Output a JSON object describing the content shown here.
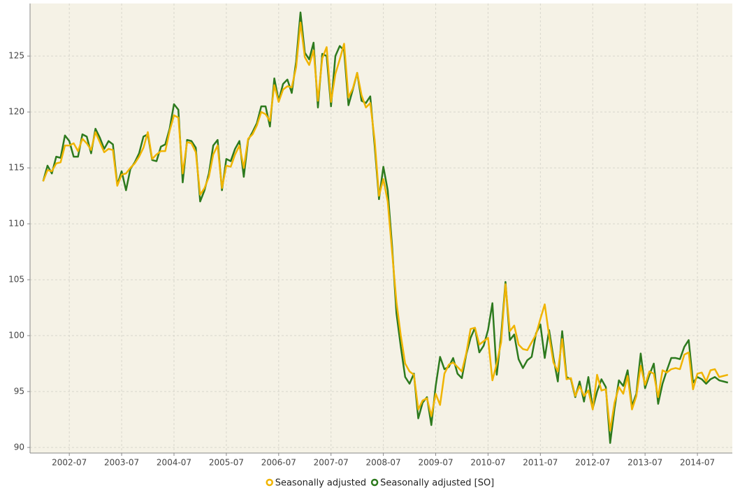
{
  "chart_data": {
    "type": "line",
    "x": [
      "2002-01",
      "2002-02",
      "2002-03",
      "2002-04",
      "2002-05",
      "2002-06",
      "2002-07",
      "2002-08",
      "2002-09",
      "2002-10",
      "2002-11",
      "2002-12",
      "2003-01",
      "2003-02",
      "2003-03",
      "2003-04",
      "2003-05",
      "2003-06",
      "2003-07",
      "2003-08",
      "2003-09",
      "2003-10",
      "2003-11",
      "2003-12",
      "2004-01",
      "2004-02",
      "2004-03",
      "2004-04",
      "2004-05",
      "2004-06",
      "2004-07",
      "2004-08",
      "2004-09",
      "2004-10",
      "2004-11",
      "2004-12",
      "2005-01",
      "2005-02",
      "2005-03",
      "2005-04",
      "2005-05",
      "2005-06",
      "2005-07",
      "2005-08",
      "2005-09",
      "2005-10",
      "2005-11",
      "2005-12",
      "2006-01",
      "2006-02",
      "2006-03",
      "2006-04",
      "2006-05",
      "2006-06",
      "2006-07",
      "2006-08",
      "2006-09",
      "2006-10",
      "2006-11",
      "2006-12",
      "2007-01",
      "2007-02",
      "2007-03",
      "2007-04",
      "2007-05",
      "2007-06",
      "2007-07",
      "2007-08",
      "2007-09",
      "2007-10",
      "2007-11",
      "2007-12",
      "2008-01",
      "2008-02",
      "2008-03",
      "2008-04",
      "2008-05",
      "2008-06",
      "2008-07",
      "2008-08",
      "2008-09",
      "2008-10",
      "2008-11",
      "2008-12",
      "2009-01",
      "2009-02",
      "2009-03",
      "2009-04",
      "2009-05",
      "2009-06",
      "2009-07",
      "2009-08",
      "2009-09",
      "2009-10",
      "2009-11",
      "2009-12",
      "2010-01",
      "2010-02",
      "2010-03",
      "2010-04",
      "2010-05",
      "2010-06",
      "2010-07",
      "2010-08",
      "2010-09",
      "2010-10",
      "2010-11",
      "2010-12",
      "2011-01",
      "2011-02",
      "2011-03",
      "2011-04",
      "2011-05",
      "2011-06",
      "2011-07",
      "2011-08",
      "2011-09",
      "2011-10",
      "2011-11",
      "2011-12",
      "2012-01",
      "2012-02",
      "2012-03",
      "2012-04",
      "2012-05",
      "2012-06",
      "2012-07",
      "2012-08",
      "2012-09",
      "2012-10",
      "2012-11",
      "2012-12",
      "2013-01",
      "2013-02",
      "2013-03",
      "2013-04",
      "2013-05",
      "2013-06",
      "2013-07",
      "2013-08",
      "2013-09",
      "2013-10",
      "2013-11",
      "2013-12",
      "2014-01",
      "2014-02",
      "2014-03",
      "2014-04",
      "2014-05",
      "2014-06",
      "2014-07",
      "2014-08",
      "2014-09",
      "2014-10",
      "2014-11",
      "2014-12",
      "2015-01",
      "2015-02"
    ],
    "series": [
      {
        "name": "Seasonally adjusted",
        "color": "#f0b400",
        "values": [
          113.8,
          114.8,
          114.7,
          115.4,
          115.5,
          117.0,
          117.0,
          117.2,
          116.5,
          117.6,
          117.2,
          116.6,
          118.2,
          117.3,
          116.4,
          116.7,
          116.6,
          113.4,
          114.4,
          114.5,
          115.0,
          115.4,
          116.0,
          116.8,
          118.2,
          115.8,
          116.2,
          116.5,
          116.5,
          118.3,
          119.7,
          119.5,
          114.5,
          117.3,
          117.2,
          116.4,
          112.6,
          113.2,
          114.2,
          116.2,
          117.0,
          113.2,
          115.2,
          115.1,
          116.2,
          117.0,
          115.0,
          117.6,
          118.0,
          118.8,
          120.0,
          119.8,
          119.2,
          122.4,
          120.9,
          122.0,
          122.3,
          122.2,
          124.0,
          128.0,
          124.9,
          124.2,
          125.5,
          121.0,
          124.8,
          125.8,
          120.9,
          123.4,
          124.7,
          126.1,
          121.3,
          122.1,
          123.5,
          121.5,
          120.4,
          120.8,
          117.5,
          112.5,
          114.0,
          112.0,
          107.5,
          103.0,
          100.0,
          97.5,
          96.8,
          96.5,
          93.4,
          94.2,
          94.4,
          92.8,
          94.8,
          93.8,
          96.6,
          97.4,
          97.6,
          97.2,
          96.8,
          98.4,
          100.6,
          100.7,
          99.2,
          99.5,
          99.8,
          96.0,
          97.5,
          99.4,
          104.6,
          100.4,
          100.9,
          99.2,
          98.8,
          98.7,
          99.4,
          100.1,
          101.5,
          102.8,
          100.0,
          97.6,
          96.8,
          99.7,
          96.1,
          96.2,
          94.6,
          95.5,
          94.6,
          95.1,
          93.4,
          96.5,
          95.1,
          95.2,
          91.5,
          94.0,
          95.4,
          94.8,
          96.4,
          93.4,
          94.6,
          97.3,
          95.6,
          96.8,
          96.6,
          94.5,
          96.9,
          96.7,
          97.0,
          97.1,
          97.0,
          98.3,
          98.5,
          95.2,
          96.6,
          96.7,
          95.9,
          96.9,
          97.0,
          96.3,
          96.4,
          96.5
        ]
      },
      {
        "name": "Seasonally adjusted [SO]",
        "color": "#2d7a1e",
        "values": [
          113.8,
          115.2,
          114.5,
          116.0,
          115.9,
          117.9,
          117.4,
          116.0,
          116.0,
          118.0,
          117.8,
          116.3,
          118.5,
          117.7,
          116.7,
          117.4,
          117.1,
          113.5,
          114.7,
          113.0,
          114.9,
          115.5,
          116.3,
          117.8,
          118.0,
          115.7,
          115.6,
          116.9,
          117.1,
          118.5,
          120.7,
          120.2,
          113.7,
          117.5,
          117.4,
          116.8,
          112.0,
          113.0,
          114.5,
          117.0,
          117.5,
          113.0,
          115.8,
          115.6,
          116.7,
          117.4,
          114.2,
          117.5,
          118.2,
          119.0,
          120.5,
          120.5,
          118.7,
          123.0,
          121.0,
          122.5,
          122.9,
          121.7,
          124.5,
          128.9,
          125.3,
          124.7,
          126.2,
          120.4,
          125.2,
          125.0,
          120.5,
          125.0,
          125.9,
          125.5,
          120.6,
          122.0,
          123.5,
          121.0,
          120.8,
          121.4,
          117.0,
          112.2,
          115.1,
          113.0,
          108.0,
          102.0,
          99.0,
          96.3,
          95.7,
          96.6,
          92.6,
          94.0,
          94.5,
          92.0,
          95.5,
          98.1,
          97.0,
          97.2,
          98.0,
          96.6,
          96.2,
          98.3,
          99.8,
          100.7,
          98.5,
          99.1,
          100.5,
          102.9,
          96.5,
          100.0,
          104.8,
          99.6,
          100.1,
          97.9,
          97.1,
          97.8,
          98.1,
          100.2,
          101.0,
          98.0,
          100.5,
          98.0,
          95.9,
          100.4,
          96.3,
          96.1,
          94.5,
          95.9,
          94.1,
          96.3,
          93.5,
          95.0,
          96.1,
          95.4,
          90.4,
          93.5,
          96.0,
          95.5,
          96.9,
          93.7,
          94.8,
          98.4,
          95.3,
          96.5,
          97.5,
          93.9,
          95.7,
          96.9,
          98.0,
          98.0,
          97.9,
          99.0,
          99.6,
          95.8,
          96.3,
          96.1,
          95.7,
          96.1,
          96.3,
          96.0,
          95.9,
          95.8
        ]
      }
    ],
    "xlim": [
      "2001-10",
      "2015-03"
    ],
    "xticks": [
      "2002-07",
      "2003-07",
      "2004-07",
      "2005-07",
      "2006-07",
      "2007-07",
      "2008-07",
      "2009-07",
      "2010-07",
      "2011-07",
      "2012-07",
      "2013-07",
      "2014-07"
    ],
    "ylim": [
      89.5,
      129.7
    ],
    "yticks": [
      90,
      95,
      100,
      105,
      110,
      115,
      120,
      125
    ],
    "grid": true,
    "legend": "bottom"
  }
}
